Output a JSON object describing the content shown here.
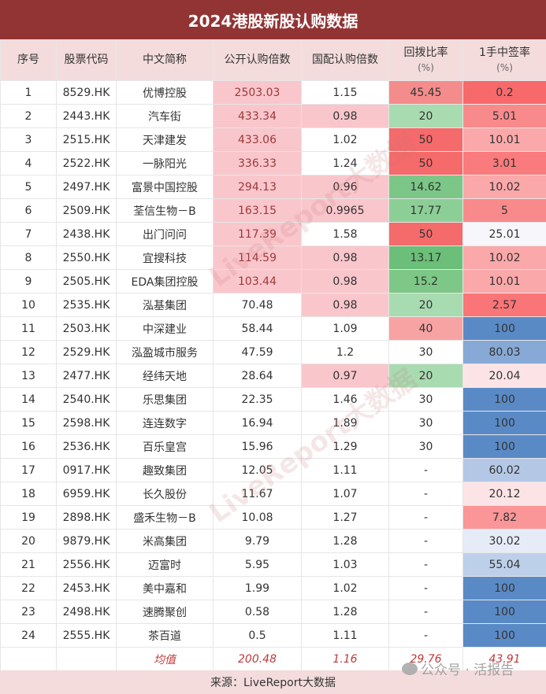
{
  "title": "2024港股新股认购数据",
  "chart_data": {
    "type": "table",
    "columns": [
      "序号",
      "股票代码",
      "中文简称",
      "公开认购倍数",
      "国配认购倍数",
      "回拨比率\n(%)",
      "1手中签率\n(%)"
    ],
    "rows": [
      [
        "1",
        "8529.HK",
        "优博控股",
        "2503.03",
        "1.15",
        "45.45",
        "0.2"
      ],
      [
        "2",
        "2443.HK",
        "汽车街",
        "433.34",
        "0.98",
        "20",
        "5.01"
      ],
      [
        "3",
        "2515.HK",
        "天津建发",
        "433.06",
        "1.02",
        "50",
        "10.01"
      ],
      [
        "4",
        "2522.HK",
        "一脉阳光",
        "336.33",
        "1.24",
        "50",
        "3.01"
      ],
      [
        "5",
        "2497.HK",
        "富景中国控股",
        "294.13",
        "0.96",
        "14.62",
        "10.02"
      ],
      [
        "6",
        "2509.HK",
        "荃信生物－B",
        "163.15",
        "0.9965",
        "17.77",
        "5"
      ],
      [
        "7",
        "2438.HK",
        "出门问问",
        "117.39",
        "1.58",
        "50",
        "25.01"
      ],
      [
        "8",
        "2550.HK",
        "宜搜科技",
        "114.59",
        "0.98",
        "13.17",
        "10.02"
      ],
      [
        "9",
        "2505.HK",
        "EDA集团控股",
        "103.44",
        "0.98",
        "15.2",
        "10.01"
      ],
      [
        "10",
        "2535.HK",
        "泓基集团",
        "70.48",
        "0.98",
        "20",
        "2.57"
      ],
      [
        "11",
        "2503.HK",
        "中深建业",
        "58.44",
        "1.09",
        "40",
        "100"
      ],
      [
        "12",
        "2529.HK",
        "泓盈城市服务",
        "47.59",
        "1.2",
        "30",
        "80.03"
      ],
      [
        "13",
        "2477.HK",
        "经纬天地",
        "28.64",
        "0.97",
        "20",
        "20.04"
      ],
      [
        "14",
        "2540.HK",
        "乐思集团",
        "22.35",
        "1.46",
        "30",
        "100"
      ],
      [
        "15",
        "2598.HK",
        "连连数字",
        "16.94",
        "1.89",
        "30",
        "100"
      ],
      [
        "16",
        "2536.HK",
        "百乐皇宫",
        "15.96",
        "1.29",
        "30",
        "100"
      ],
      [
        "17",
        "0917.HK",
        "趣致集团",
        "12.05",
        "1.11",
        "-",
        "60.02"
      ],
      [
        "18",
        "6959.HK",
        "长久股份",
        "11.67",
        "1.07",
        "-",
        "20.12"
      ],
      [
        "19",
        "2898.HK",
        "盛禾生物－B",
        "10.08",
        "1.27",
        "-",
        "7.82"
      ],
      [
        "20",
        "9879.HK",
        "米高集团",
        "9.79",
        "1.28",
        "-",
        "30.02"
      ],
      [
        "21",
        "2556.HK",
        "迈富时",
        "5.95",
        "1.03",
        "-",
        "55.04"
      ],
      [
        "22",
        "2453.HK",
        "美中嘉和",
        "1.99",
        "1.02",
        "-",
        "100"
      ],
      [
        "23",
        "2498.HK",
        "速腾聚创",
        "0.58",
        "1.28",
        "-",
        "100"
      ],
      [
        "24",
        "2555.HK",
        "茶百道",
        "0.5",
        "1.11",
        "-",
        "100"
      ]
    ],
    "average": [
      "",
      "",
      "均值",
      "200.48",
      "1.16",
      "29.76",
      "43.91"
    ],
    "cell_colors": {
      "col3": [
        "#f9c6cc",
        "#f9c6cc",
        "#f9c6cc",
        "#f9c6cc",
        "#f9c6cc",
        "#f9c6cc",
        "#f9c6cc",
        "#f9c6cc",
        "#f9c6cc",
        "",
        "",
        "",
        "",
        "",
        "",
        "",
        "",
        "",
        "",
        "",
        "",
        "",
        "",
        ""
      ],
      "col4": [
        "",
        "#f9c6cc",
        "",
        "",
        "#f9c6cc",
        "#f9c6cc",
        "",
        "#f9c6cc",
        "#f9c6cc",
        "#f9c6cc",
        "",
        "",
        "#f9c6cc",
        "",
        "",
        "",
        "",
        "",
        "",
        "",
        "",
        "",
        "",
        ""
      ],
      "col5": [
        "#f48c8c",
        "#a9dbb1",
        "#f56a6b",
        "#f56a6b",
        "#7cc788",
        "#8ccf96",
        "#f56a6b",
        "#6bbf78",
        "#7dc787",
        "#a9dbb1",
        "#f8a3a3",
        "",
        "#a9dbb1",
        "",
        "",
        "",
        "",
        "",
        "",
        "",
        "",
        "",
        "",
        ""
      ],
      "col6": [
        "#f8696b",
        "#f98a8c",
        "#fba8aa",
        "#f97b7d",
        "#fba8aa",
        "#f98a8c",
        "#f7f7fb",
        "#fba8aa",
        "#fba8aa",
        "#f97577",
        "#5a8ac6",
        "#87a9d6",
        "#fce4e6",
        "#5a8ac6",
        "#5a8ac6",
        "#5a8ac6",
        "#b4c8e6",
        "#fce4e6",
        "#fa9698",
        "#e6ecf7",
        "#bdd0ea",
        "#5a8ac6",
        "#5a8ac6",
        "#5a8ac6"
      ]
    }
  },
  "footer": "来源：LiveReport大数据",
  "watermark": "公众号 · 活报告",
  "bg_watermark": "LiveReport大数据"
}
